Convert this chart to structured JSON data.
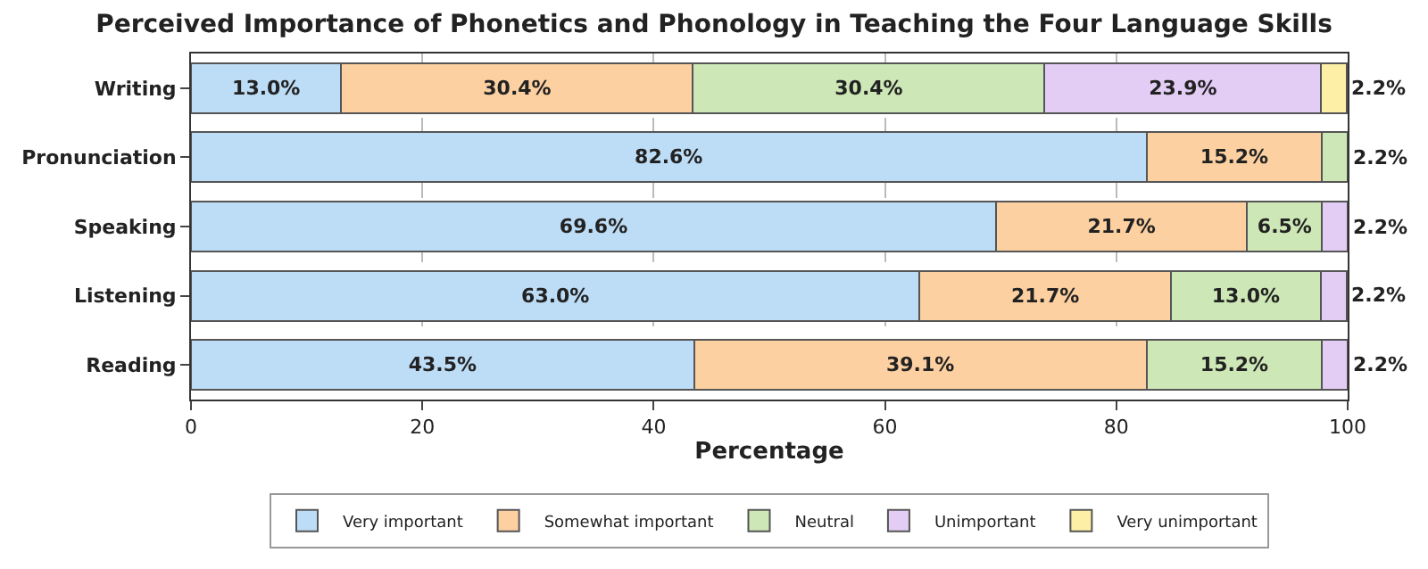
{
  "chart_data": {
    "type": "bar",
    "orientation": "horizontal",
    "stacked": true,
    "title": "Perceived Importance of Phonetics and Phonology in Teaching the Four Language Skills",
    "xlabel": "Percentage",
    "categories": [
      "Writing",
      "Pronunciation",
      "Speaking",
      "Listening",
      "Reading"
    ],
    "series": [
      {
        "name": "Very important",
        "color": "#bddcf6",
        "values": [
          13.0,
          82.6,
          69.6,
          63.0,
          43.5
        ],
        "value_labels": [
          "13.0%",
          "82.6%",
          "69.6%",
          "63.0%",
          "43.5%"
        ]
      },
      {
        "name": "Somewhat important",
        "color": "#fcd0a1",
        "values": [
          30.4,
          15.2,
          21.7,
          21.7,
          39.1
        ],
        "value_labels": [
          "30.4%",
          "15.2%",
          "21.7%",
          "21.7%",
          "39.1%"
        ]
      },
      {
        "name": "Neutral",
        "color": "#cde8b6",
        "values": [
          30.4,
          2.2,
          6.5,
          13.0,
          15.2
        ],
        "value_labels": [
          "30.4%",
          "2.2%",
          "6.5%",
          "13.0%",
          "15.2%"
        ]
      },
      {
        "name": "Unimportant",
        "color": "#e3cdf5",
        "values": [
          23.9,
          null,
          2.2,
          2.2,
          2.2
        ],
        "value_labels": [
          "23.9%",
          null,
          "2.2%",
          "2.2%",
          "2.2%"
        ]
      },
      {
        "name": "Very unimportant",
        "color": "#fdf0a6",
        "values": [
          2.2,
          null,
          null,
          null,
          null
        ],
        "value_labels": [
          "2.2%",
          null,
          null,
          null,
          null
        ]
      }
    ],
    "xlim": [
      0,
      100
    ],
    "xticks": [
      0,
      20,
      40,
      60,
      80,
      100
    ],
    "grid": "x",
    "legend": "bottom"
  }
}
